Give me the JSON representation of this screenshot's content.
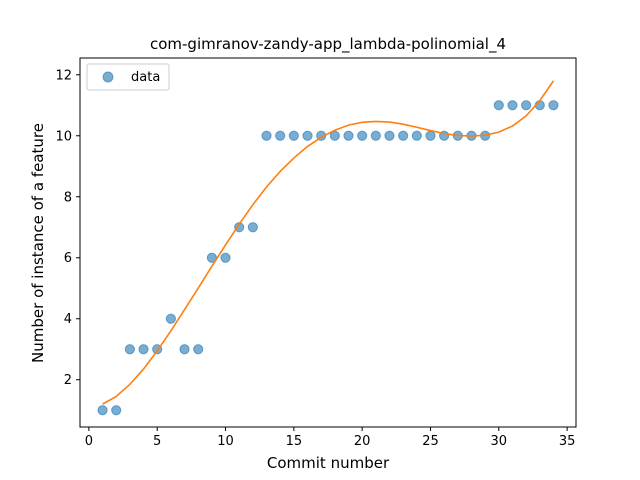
{
  "chart_data": {
    "type": "scatter",
    "title": "com-gimranov-zandy-app_lambda-polinomial_4",
    "xlabel": "Commit number",
    "ylabel": "Number of instance of a feature",
    "xlim": [
      -0.65,
      35.65
    ],
    "ylim": [
      0.45,
      12.55
    ],
    "xticks": [
      0,
      5,
      10,
      15,
      20,
      25,
      30,
      35
    ],
    "yticks": [
      2,
      4,
      6,
      8,
      10,
      12
    ],
    "grid": false,
    "legend_position": "top-left",
    "series": [
      {
        "name": "data",
        "kind": "scatter",
        "color": "#1f77b4",
        "x": [
          1,
          2,
          3,
          4,
          5,
          6,
          7,
          8,
          9,
          10,
          11,
          12,
          13,
          14,
          15,
          16,
          17,
          18,
          19,
          20,
          21,
          22,
          23,
          24,
          25,
          26,
          27,
          28,
          29,
          30,
          31,
          32,
          33,
          34
        ],
        "y": [
          1,
          1,
          3,
          3,
          3,
          4,
          3,
          3,
          6,
          6,
          7,
          7,
          10,
          10,
          10,
          10,
          10,
          10,
          10,
          10,
          10,
          10,
          10,
          10,
          10,
          10,
          10,
          10,
          10,
          11,
          11,
          11,
          11,
          11
        ]
      },
      {
        "kind": "line",
        "color": "#ff7f0e",
        "x": [
          1,
          2,
          3,
          4,
          5,
          6,
          7,
          8,
          9,
          10,
          11,
          12,
          13,
          14,
          15,
          16,
          17,
          18,
          19,
          20,
          21,
          22,
          23,
          24,
          25,
          26,
          27,
          28,
          29,
          30,
          31,
          32,
          33,
          34
        ],
        "y": [
          1.2,
          1.45,
          1.85,
          2.35,
          2.95,
          3.6,
          4.3,
          5.0,
          5.72,
          6.42,
          7.1,
          7.74,
          8.32,
          8.83,
          9.27,
          9.65,
          9.95,
          10.18,
          10.35,
          10.44,
          10.47,
          10.45,
          10.38,
          10.28,
          10.17,
          10.07,
          10.01,
          9.99,
          10.02,
          10.12,
          10.32,
          10.65,
          11.15,
          11.8
        ]
      }
    ]
  }
}
